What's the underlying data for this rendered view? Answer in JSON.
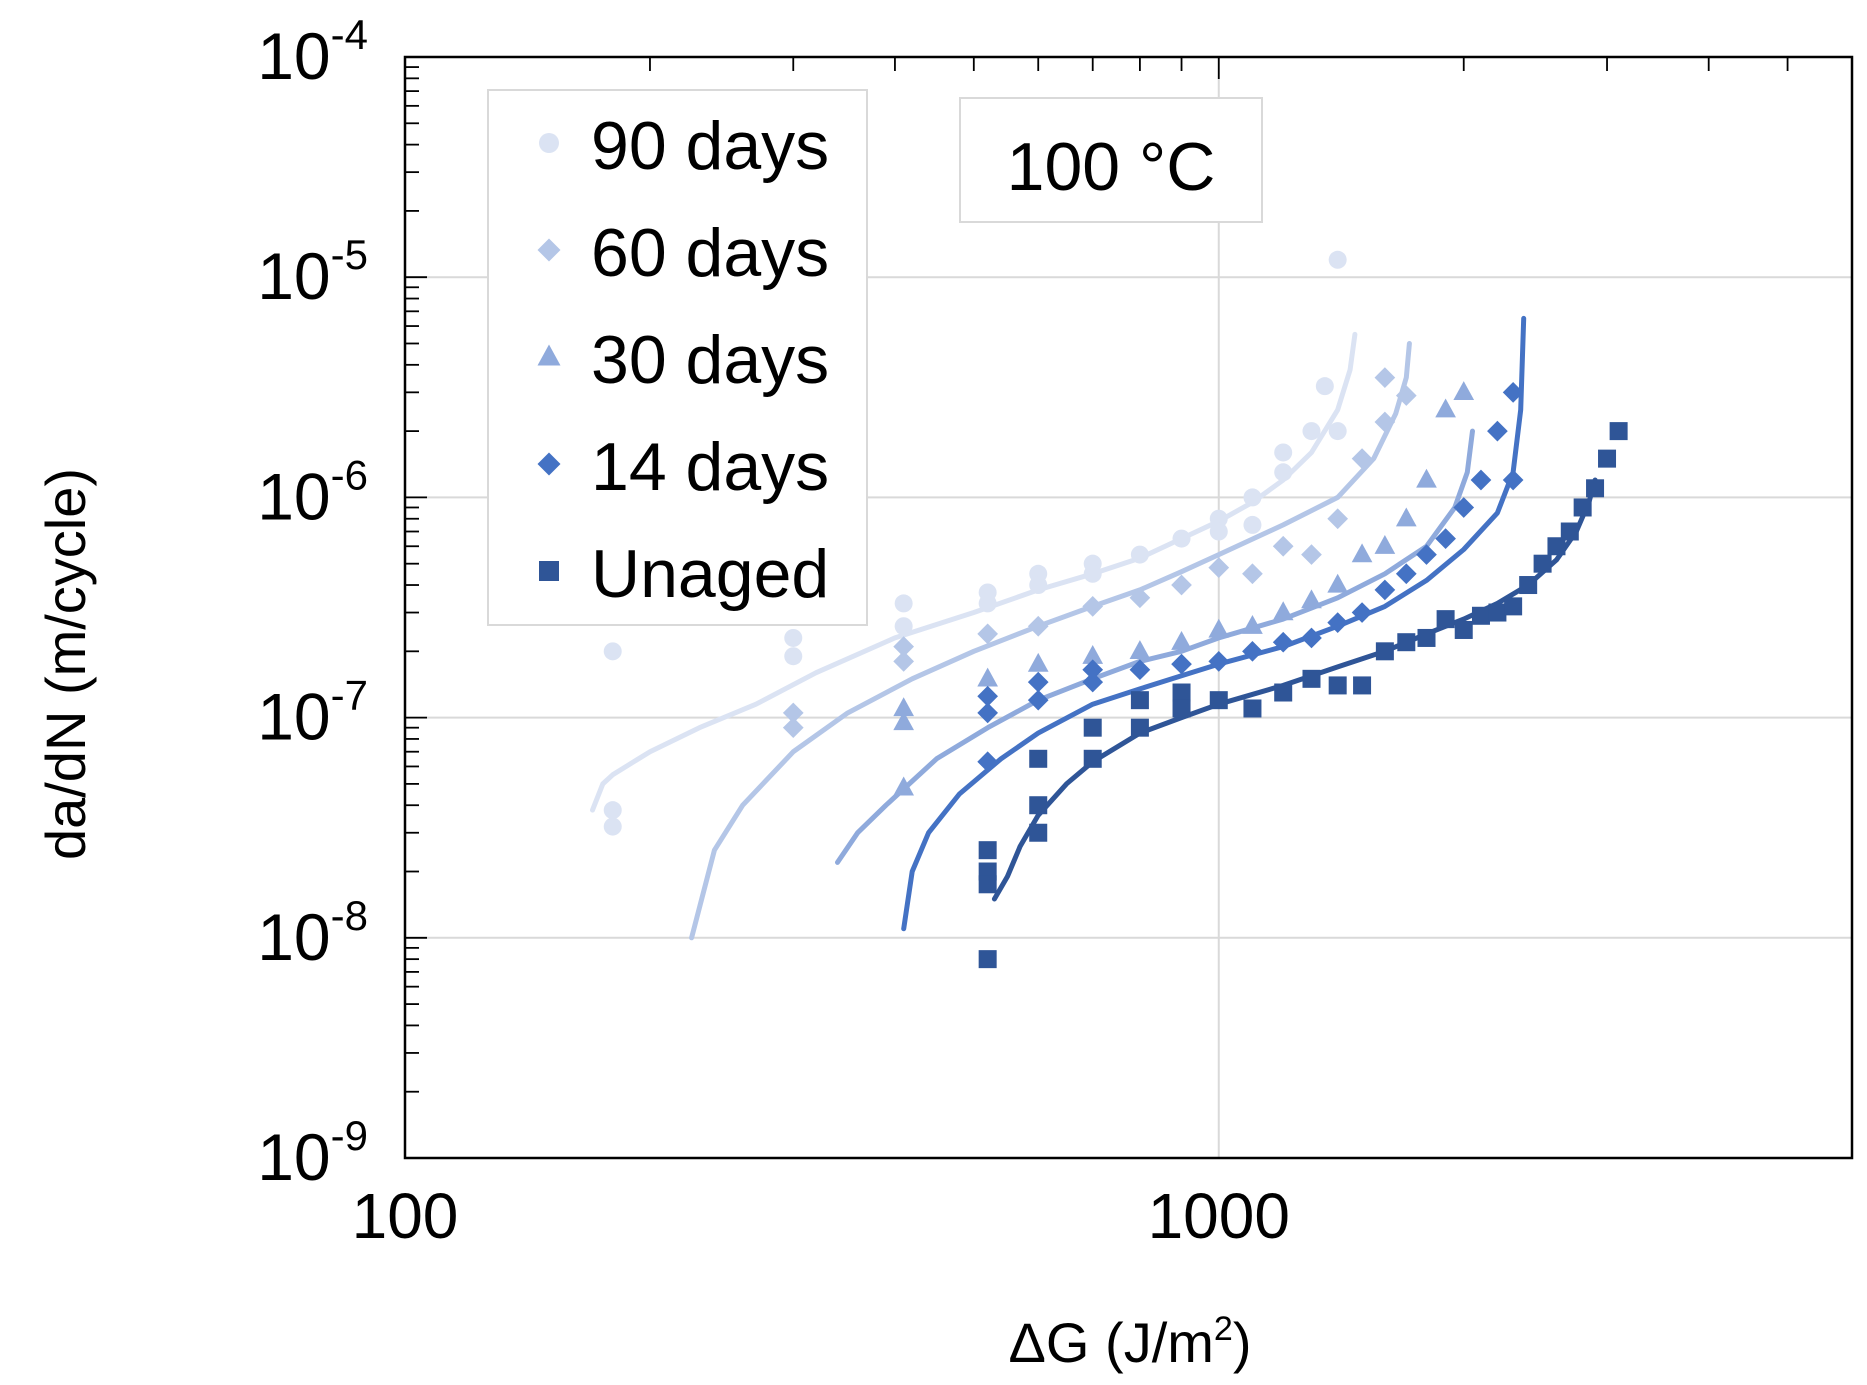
{
  "chart_data": {
    "type": "scatter",
    "title": "",
    "xlabel": "ΔG (J/m²)",
    "xlabel_parts": {
      "main": "ΔG (J/m",
      "sup": "2",
      "end": ")"
    },
    "ylabel": "da/dN (m/cycle)",
    "x_scale": "log",
    "y_scale": "log",
    "xlim": [
      100,
      6000
    ],
    "ylim": [
      1e-09,
      0.0001
    ],
    "x_ticks": [
      {
        "value": 100,
        "label": "100"
      },
      {
        "value": 1000,
        "label": "1000"
      }
    ],
    "y_ticks": [
      {
        "value": 1e-09,
        "base": "10",
        "exp": "-9"
      },
      {
        "value": 1e-08,
        "base": "10",
        "exp": "-8"
      },
      {
        "value": 1e-07,
        "base": "10",
        "exp": "-7"
      },
      {
        "value": 1e-06,
        "base": "10",
        "exp": "-6"
      },
      {
        "value": 1e-05,
        "base": "10",
        "exp": "-5"
      },
      {
        "value": 0.0001,
        "base": "10",
        "exp": "-4"
      }
    ],
    "grid": true,
    "annotation": "100 °C",
    "legend_position": "top-left",
    "series": [
      {
        "name": "90 days",
        "marker": "circle",
        "color": "#dbe3f3",
        "points": [
          [
            180,
            2e-07
          ],
          [
            180,
            3.8e-08
          ],
          [
            180,
            3.2e-08
          ],
          [
            300,
            2.3e-07
          ],
          [
            300,
            1.9e-07
          ],
          [
            410,
            3.3e-07
          ],
          [
            410,
            2.6e-07
          ],
          [
            520,
            3.7e-07
          ],
          [
            520,
            3.3e-07
          ],
          [
            600,
            4.5e-07
          ],
          [
            600,
            4e-07
          ],
          [
            700,
            5e-07
          ],
          [
            700,
            4.5e-07
          ],
          [
            800,
            5.5e-07
          ],
          [
            900,
            6.5e-07
          ],
          [
            1000,
            8e-07
          ],
          [
            1000,
            7e-07
          ],
          [
            1100,
            1e-06
          ],
          [
            1100,
            7.5e-07
          ],
          [
            1200,
            1.6e-06
          ],
          [
            1200,
            1.3e-06
          ],
          [
            1300,
            2e-06
          ],
          [
            1350,
            3.2e-06
          ],
          [
            1400,
            2e-06
          ],
          [
            1400,
            1.2e-05
          ]
        ],
        "fit": [
          [
            170,
            3.8e-08
          ],
          [
            175,
            5e-08
          ],
          [
            180,
            5.5e-08
          ],
          [
            200,
            7e-08
          ],
          [
            230,
            9e-08
          ],
          [
            270,
            1.15e-07
          ],
          [
            320,
            1.6e-07
          ],
          [
            400,
            2.3e-07
          ],
          [
            500,
            3e-07
          ],
          [
            600,
            3.8e-07
          ],
          [
            700,
            4.5e-07
          ],
          [
            800,
            5.3e-07
          ],
          [
            900,
            6.5e-07
          ],
          [
            1000,
            7.8e-07
          ],
          [
            1100,
            9.5e-07
          ],
          [
            1200,
            1.2e-06
          ],
          [
            1300,
            1.6e-06
          ],
          [
            1400,
            2.5e-06
          ],
          [
            1450,
            3.8e-06
          ],
          [
            1470,
            5.5e-06
          ]
        ]
      },
      {
        "name": "60 days",
        "marker": "diamond",
        "color": "#b4c6e7",
        "points": [
          [
            300,
            1.05e-07
          ],
          [
            300,
            9e-08
          ],
          [
            410,
            2.1e-07
          ],
          [
            410,
            1.8e-07
          ],
          [
            520,
            2.4e-07
          ],
          [
            600,
            2.6e-07
          ],
          [
            700,
            3.2e-07
          ],
          [
            800,
            3.5e-07
          ],
          [
            900,
            4e-07
          ],
          [
            1000,
            4.8e-07
          ],
          [
            1100,
            4.5e-07
          ],
          [
            1200,
            6e-07
          ],
          [
            1300,
            5.5e-07
          ],
          [
            1400,
            8e-07
          ],
          [
            1500,
            1.5e-06
          ],
          [
            1600,
            2.2e-06
          ],
          [
            1600,
            3.5e-06
          ],
          [
            1700,
            2.9e-06
          ]
        ],
        "fit": [
          [
            225,
            1e-08
          ],
          [
            240,
            2.5e-08
          ],
          [
            260,
            4e-08
          ],
          [
            300,
            7e-08
          ],
          [
            350,
            1.05e-07
          ],
          [
            420,
            1.5e-07
          ],
          [
            500,
            2e-07
          ],
          [
            600,
            2.6e-07
          ],
          [
            700,
            3.2e-07
          ],
          [
            800,
            3.8e-07
          ],
          [
            900,
            4.6e-07
          ],
          [
            1000,
            5.5e-07
          ],
          [
            1200,
            7.5e-07
          ],
          [
            1400,
            1e-06
          ],
          [
            1550,
            1.5e-06
          ],
          [
            1650,
            2.4e-06
          ],
          [
            1700,
            3.5e-06
          ],
          [
            1715,
            5e-06
          ]
        ]
      },
      {
        "name": "30 days",
        "marker": "triangle",
        "color": "#8faadc",
        "points": [
          [
            410,
            1.1e-07
          ],
          [
            410,
            9.5e-08
          ],
          [
            410,
            4.8e-08
          ],
          [
            520,
            1.5e-07
          ],
          [
            600,
            1.75e-07
          ],
          [
            700,
            1.9e-07
          ],
          [
            800,
            2e-07
          ],
          [
            900,
            2.2e-07
          ],
          [
            1000,
            2.5e-07
          ],
          [
            1100,
            2.6e-07
          ],
          [
            1200,
            3e-07
          ],
          [
            1300,
            3.4e-07
          ],
          [
            1400,
            4e-07
          ],
          [
            1500,
            5.5e-07
          ],
          [
            1600,
            6e-07
          ],
          [
            1700,
            8e-07
          ],
          [
            1800,
            1.2e-06
          ],
          [
            1900,
            2.5e-06
          ],
          [
            2000,
            3e-06
          ]
        ],
        "fit": [
          [
            340,
            2.2e-08
          ],
          [
            360,
            3e-08
          ],
          [
            390,
            4e-08
          ],
          [
            450,
            6.5e-08
          ],
          [
            520,
            9e-08
          ],
          [
            600,
            1.2e-07
          ],
          [
            700,
            1.5e-07
          ],
          [
            800,
            1.8e-07
          ],
          [
            900,
            2e-07
          ],
          [
            1000,
            2.3e-07
          ],
          [
            1200,
            2.8e-07
          ],
          [
            1400,
            3.5e-07
          ],
          [
            1600,
            4.5e-07
          ],
          [
            1800,
            6e-07
          ],
          [
            1950,
            9e-07
          ],
          [
            2020,
            1.3e-06
          ],
          [
            2050,
            2e-06
          ]
        ]
      },
      {
        "name": "14 days",
        "marker": "diamond",
        "color": "#4472c4",
        "points": [
          [
            520,
            1.25e-07
          ],
          [
            520,
            1.05e-07
          ],
          [
            520,
            6.3e-08
          ],
          [
            600,
            1.45e-07
          ],
          [
            600,
            1.2e-07
          ],
          [
            700,
            1.65e-07
          ],
          [
            700,
            1.45e-07
          ],
          [
            800,
            1.65e-07
          ],
          [
            900,
            1.75e-07
          ],
          [
            1000,
            1.8e-07
          ],
          [
            1100,
            2e-07
          ],
          [
            1200,
            2.2e-07
          ],
          [
            1300,
            2.3e-07
          ],
          [
            1400,
            2.7e-07
          ],
          [
            1500,
            3e-07
          ],
          [
            1600,
            3.8e-07
          ],
          [
            1700,
            4.5e-07
          ],
          [
            1800,
            5.5e-07
          ],
          [
            1900,
            6.5e-07
          ],
          [
            2000,
            9e-07
          ],
          [
            2100,
            1.2e-06
          ],
          [
            2300,
            1.2e-06
          ],
          [
            2200,
            2e-06
          ],
          [
            2300,
            3e-06
          ]
        ],
        "fit": [
          [
            410,
            1.1e-08
          ],
          [
            420,
            2e-08
          ],
          [
            440,
            3e-08
          ],
          [
            480,
            4.5e-08
          ],
          [
            540,
            6.5e-08
          ],
          [
            600,
            8.5e-08
          ],
          [
            700,
            1.15e-07
          ],
          [
            800,
            1.35e-07
          ],
          [
            900,
            1.55e-07
          ],
          [
            1000,
            1.75e-07
          ],
          [
            1200,
            2.1e-07
          ],
          [
            1400,
            2.6e-07
          ],
          [
            1600,
            3.2e-07
          ],
          [
            1800,
            4.2e-07
          ],
          [
            2000,
            5.8e-07
          ],
          [
            2200,
            8.5e-07
          ],
          [
            2300,
            1.3e-06
          ],
          [
            2350,
            2.5e-06
          ],
          [
            2370,
            6.5e-06
          ]
        ]
      },
      {
        "name": "Unaged",
        "marker": "square",
        "color": "#2f5597",
        "points": [
          [
            520,
            2.5e-08
          ],
          [
            520,
            2e-08
          ],
          [
            520,
            1.75e-08
          ],
          [
            520,
            8e-09
          ],
          [
            600,
            6.5e-08
          ],
          [
            600,
            4e-08
          ],
          [
            600,
            3e-08
          ],
          [
            700,
            9e-08
          ],
          [
            700,
            6.5e-08
          ],
          [
            800,
            1.2e-07
          ],
          [
            800,
            9e-08
          ],
          [
            900,
            1.3e-07
          ],
          [
            900,
            1.1e-07
          ],
          [
            1000,
            1.2e-07
          ],
          [
            1100,
            1.1e-07
          ],
          [
            1200,
            1.3e-07
          ],
          [
            1300,
            1.5e-07
          ],
          [
            1400,
            1.4e-07
          ],
          [
            1500,
            1.4e-07
          ],
          [
            1600,
            2e-07
          ],
          [
            1700,
            2.2e-07
          ],
          [
            1800,
            2.3e-07
          ],
          [
            1900,
            2.8e-07
          ],
          [
            2000,
            2.5e-07
          ],
          [
            2100,
            2.9e-07
          ],
          [
            2200,
            3e-07
          ],
          [
            2300,
            3.2e-07
          ],
          [
            2400,
            4e-07
          ],
          [
            2500,
            5e-07
          ],
          [
            2600,
            6e-07
          ],
          [
            2700,
            7e-07
          ],
          [
            2800,
            9e-07
          ],
          [
            2900,
            1.1e-06
          ],
          [
            3000,
            1.5e-06
          ],
          [
            3100,
            2e-06
          ]
        ],
        "fit": [
          [
            530,
            1.5e-08
          ],
          [
            550,
            1.9e-08
          ],
          [
            570,
            2.6e-08
          ],
          [
            600,
            3.6e-08
          ],
          [
            650,
            5e-08
          ],
          [
            700,
            6.3e-08
          ],
          [
            800,
            8.5e-08
          ],
          [
            900,
            1e-07
          ],
          [
            1000,
            1.15e-07
          ],
          [
            1200,
            1.4e-07
          ],
          [
            1400,
            1.7e-07
          ],
          [
            1600,
            2e-07
          ],
          [
            1800,
            2.4e-07
          ],
          [
            2000,
            2.8e-07
          ],
          [
            2200,
            3.3e-07
          ],
          [
            2400,
            4e-07
          ],
          [
            2600,
            5.2e-07
          ],
          [
            2750,
            7e-07
          ],
          [
            2850,
            9.5e-07
          ],
          [
            2900,
            1.2e-06
          ]
        ]
      }
    ]
  }
}
